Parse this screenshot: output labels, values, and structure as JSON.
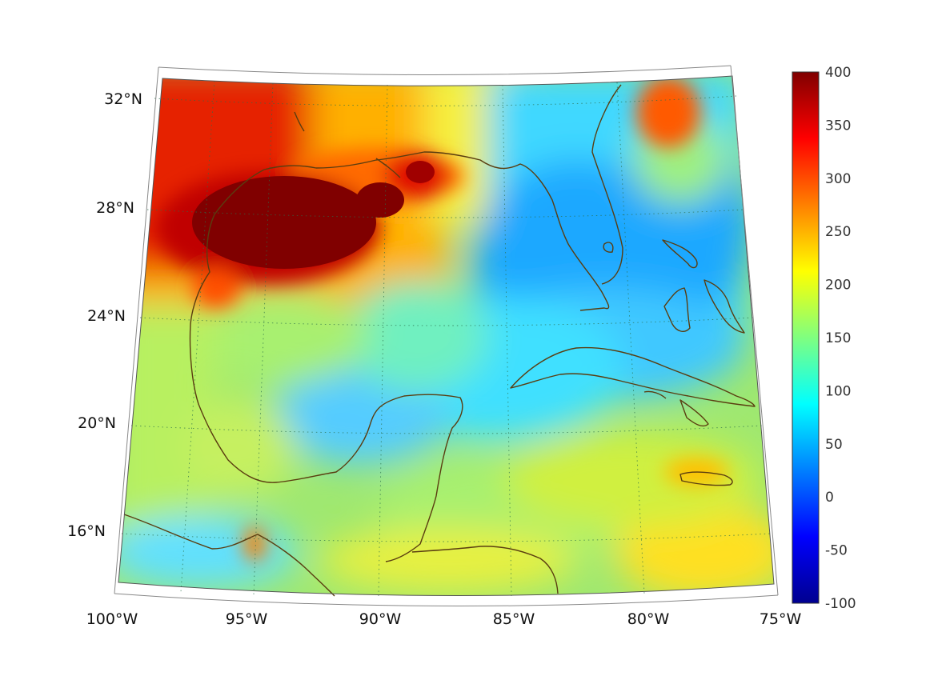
{
  "map": {
    "lon_labels": [
      "100°W",
      "95°W",
      "90°W",
      "85°W",
      "80°W",
      "75°W"
    ],
    "lat_labels": [
      "32°N",
      "28°N",
      "24°N",
      "20°N",
      "16°N"
    ],
    "extent": {
      "lon_min": -100,
      "lon_max": -75,
      "lat_min": 14.5,
      "lat_max": 33
    },
    "coastline_color": "#5a3d10",
    "graticule": "dotted"
  },
  "colorbar": {
    "ticks": [
      "400",
      "350",
      "300",
      "250",
      "200",
      "150",
      "100",
      "50",
      "0",
      "-50",
      "-100"
    ],
    "range": [
      -100,
      400
    ],
    "colormap": "jet",
    "colors": [
      "#00008f",
      "#0000ff",
      "#0080ff",
      "#00ffff",
      "#80ff80",
      "#ffff00",
      "#ff8000",
      "#ff0000",
      "#800000"
    ]
  },
  "chart_data": {
    "type": "heatmap",
    "title": "",
    "xlabel": "",
    "ylabel": "",
    "xlim": [
      -100,
      -75
    ],
    "ylim": [
      14.5,
      33
    ],
    "zlim": [
      -100,
      400
    ],
    "features": [
      {
        "name": "",
        "lon": -93.5,
        "lat": 27.5,
        "value": 400
      },
      {
        "name": "",
        "lon": -89.0,
        "lat": 29.3,
        "value": 360
      },
      {
        "name": "",
        "lon": -98.5,
        "lat": 31.5,
        "value": 360
      },
      {
        "name": "",
        "lon": -78.5,
        "lat": 31.3,
        "value": 330
      },
      {
        "name": "",
        "lon": -95.0,
        "lat": 15.5,
        "value": 280
      },
      {
        "name": "",
        "lon": -87.5,
        "lat": 31.8,
        "value": 200
      },
      {
        "name": "",
        "lon": -82.5,
        "lat": 28.5,
        "value": 40
      },
      {
        "name": "",
        "lon": -79.5,
        "lat": 24.0,
        "value": 40
      },
      {
        "name": "",
        "lon": -91.0,
        "lat": 20.5,
        "value": 90
      },
      {
        "name": "",
        "lon": -96.0,
        "lat": 22.0,
        "value": 160
      },
      {
        "name": "",
        "lon": -77.5,
        "lat": 16.0,
        "value": 230
      },
      {
        "name": "",
        "lon": -89.0,
        "lat": 16.5,
        "value": 185
      }
    ]
  }
}
